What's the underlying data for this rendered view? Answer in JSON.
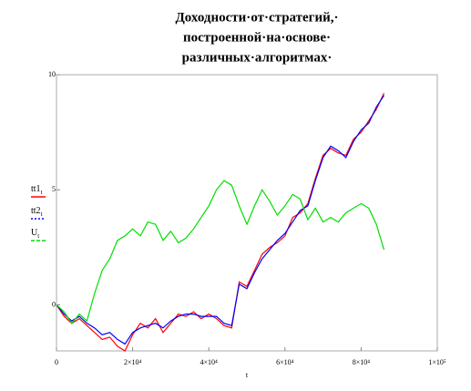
{
  "chart_data": {
    "type": "line",
    "title_lines": [
      "Доходности·от·стратегий,·",
      "построенной·на·основе·",
      "различных·алгоритмах·"
    ],
    "x_label": "t",
    "x": [
      0,
      2000,
      4000,
      6000,
      8000,
      10000,
      12000,
      14000,
      16000,
      18000,
      20000,
      22000,
      24000,
      26000,
      28000,
      30000,
      32000,
      34000,
      36000,
      38000,
      40000,
      42000,
      44000,
      46000,
      48000,
      50000,
      52000,
      54000,
      56000,
      58000,
      60000,
      62000,
      64000,
      66000,
      68000,
      70000,
      72000,
      74000,
      76000,
      78000,
      80000,
      82000,
      84000,
      86000
    ],
    "series": [
      {
        "name": "tt1",
        "subscript": "t",
        "color": "#ff0000",
        "values": [
          0,
          -0.5,
          -0.8,
          -0.6,
          -0.9,
          -1.2,
          -1.5,
          -1.4,
          -1.8,
          -2.0,
          -1.3,
          -0.8,
          -1.0,
          -0.6,
          -1.2,
          -0.8,
          -0.4,
          -0.5,
          -0.3,
          -0.6,
          -0.4,
          -0.6,
          -0.9,
          -1.0,
          1.0,
          0.8,
          1.5,
          2.2,
          2.5,
          2.7,
          3.0,
          3.8,
          4.0,
          4.4,
          5.5,
          6.5,
          6.8,
          6.6,
          6.5,
          7.2,
          7.5,
          8.0,
          8.5,
          9.2
        ]
      },
      {
        "name": "tt2",
        "subscript": "t",
        "color": "#0000ff",
        "values": [
          0,
          -0.4,
          -0.7,
          -0.5,
          -0.8,
          -1.0,
          -1.3,
          -1.2,
          -1.5,
          -1.7,
          -1.2,
          -1.0,
          -0.9,
          -0.8,
          -1.0,
          -0.7,
          -0.5,
          -0.4,
          -0.4,
          -0.5,
          -0.5,
          -0.5,
          -0.8,
          -0.9,
          0.9,
          0.7,
          1.4,
          2.0,
          2.4,
          2.8,
          3.1,
          3.6,
          4.1,
          4.3,
          5.4,
          6.4,
          6.9,
          6.7,
          6.4,
          7.1,
          7.6,
          7.9,
          8.6,
          9.1
        ]
      },
      {
        "name": "U",
        "subscript": "t",
        "color": "#00dd00",
        "values": [
          0,
          -0.3,
          -0.8,
          -0.4,
          -0.7,
          0.5,
          1.5,
          2.0,
          2.8,
          3.0,
          3.3,
          3.0,
          3.6,
          3.5,
          2.8,
          3.2,
          2.7,
          2.9,
          3.3,
          3.8,
          4.3,
          5.0,
          5.4,
          5.2,
          4.3,
          3.5,
          4.3,
          5.0,
          4.5,
          3.9,
          4.3,
          4.8,
          4.6,
          3.7,
          4.2,
          3.6,
          3.8,
          3.6,
          4.0,
          4.2,
          4.4,
          4.2,
          3.5,
          2.4
        ]
      }
    ],
    "xlim": [
      0,
      100000
    ],
    "xticks": [
      0,
      {
        "value": 20000,
        "label": "2×10⁴"
      },
      {
        "value": 40000,
        "label": "4×10⁴"
      },
      {
        "value": 60000,
        "label": "6×10⁴"
      },
      {
        "value": 80000,
        "label": "8×10⁴"
      },
      {
        "value": 100000,
        "label": "1×10⁵"
      }
    ],
    "ylim": [
      -2,
      10
    ],
    "yticks": [
      0,
      5,
      10
    ],
    "grid": false
  }
}
